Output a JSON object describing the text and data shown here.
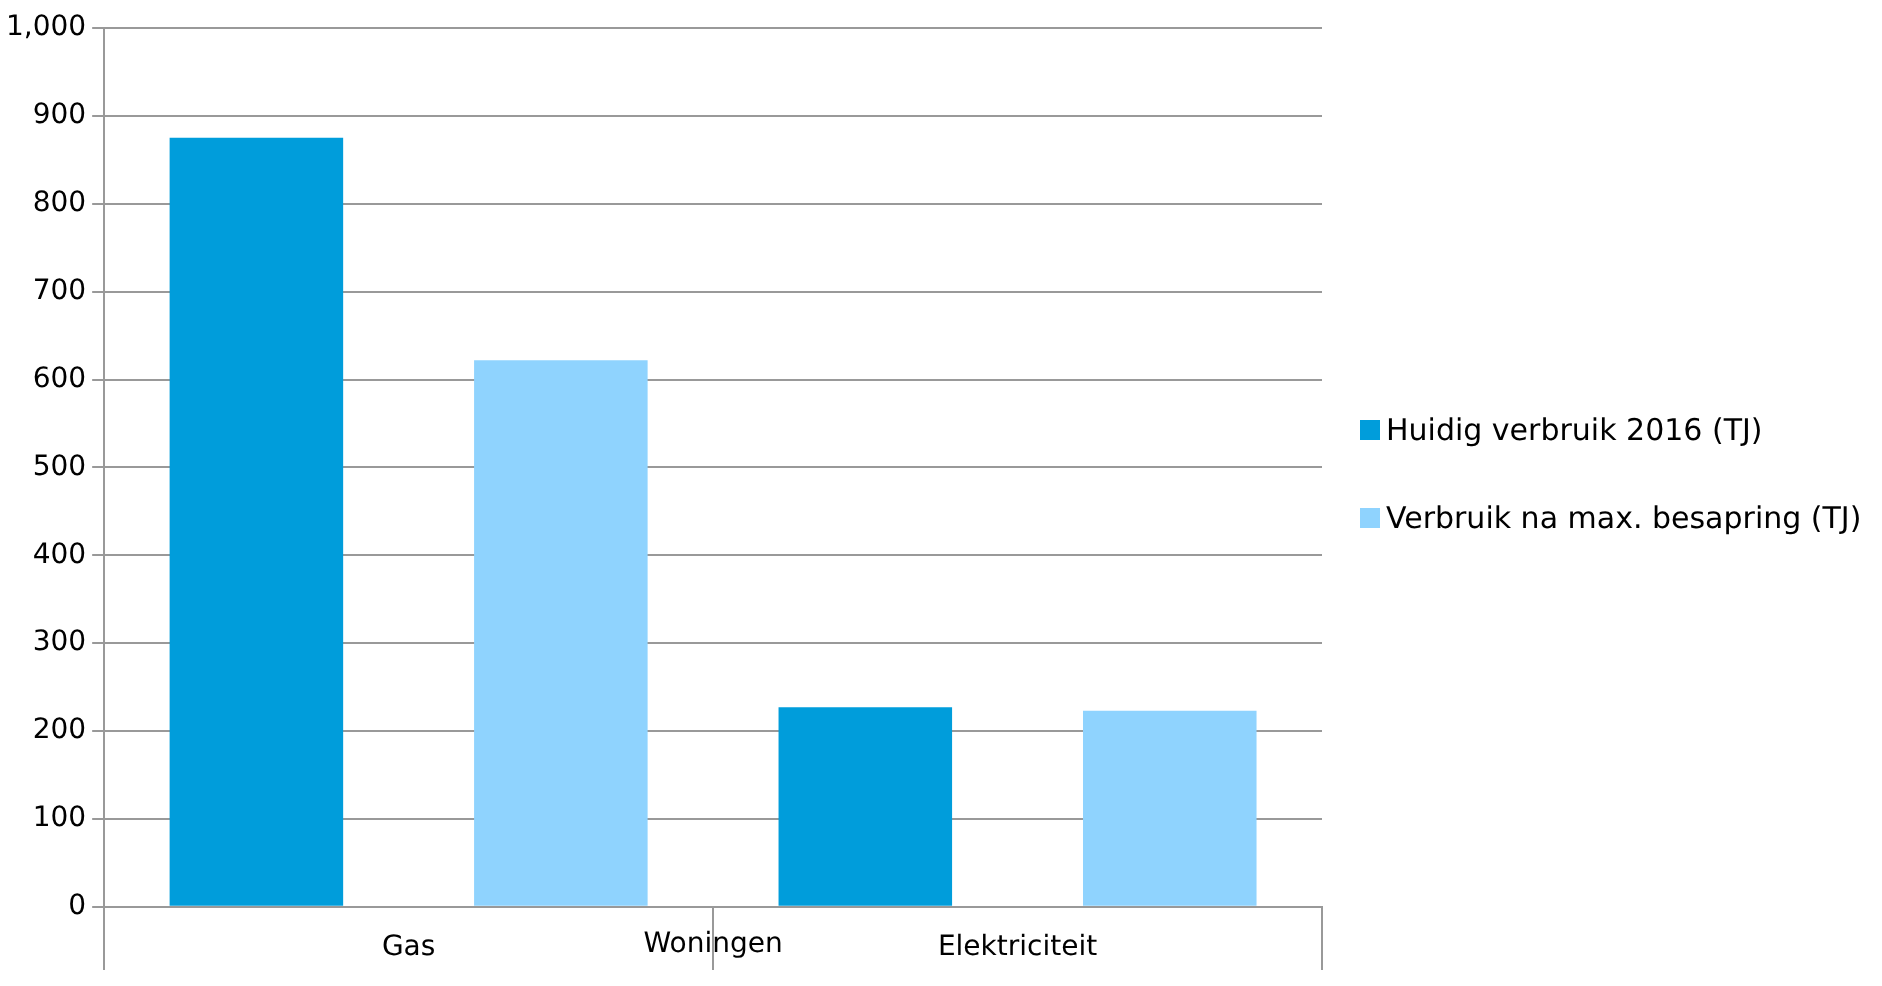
{
  "chart_data": {
    "type": "bar",
    "categories": [
      "Gas",
      "Elektriciteit"
    ],
    "xlabel": "Woningen",
    "series": [
      {
        "name": "Huidig verbruik 2016 (TJ)",
        "color": "#009ddb",
        "values": [
          875,
          227
        ]
      },
      {
        "name": "Verbruik na max. besapring (TJ)",
        "color": "#8fd3fe",
        "values": [
          622,
          223
        ]
      }
    ],
    "ylim": [
      0,
      1000
    ],
    "yticks": [
      0,
      100,
      200,
      300,
      400,
      500,
      600,
      700,
      800,
      {
        "value": 900,
        "label": "900"
      },
      {
        "value": 1000,
        "label": "1,000"
      }
    ],
    "grid": "y",
    "legend": "right"
  }
}
